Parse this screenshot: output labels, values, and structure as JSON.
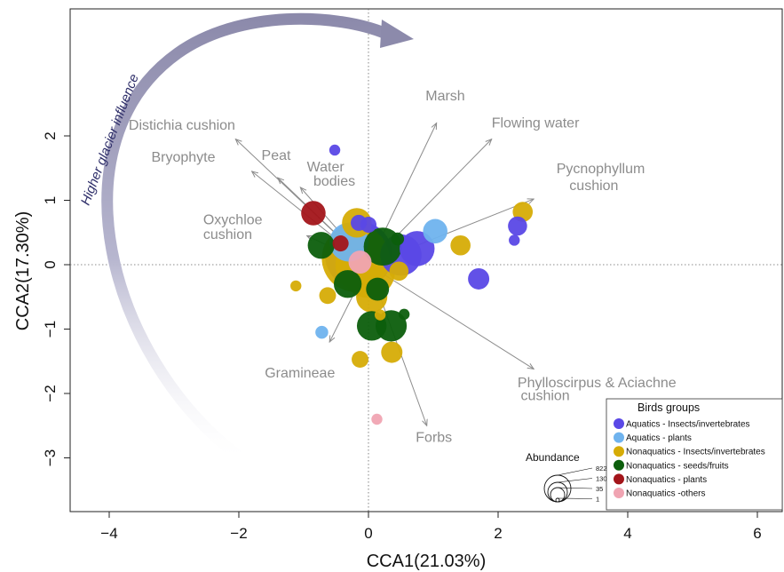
{
  "chart_data": {
    "type": "scatter",
    "xlabel": "CCA1(21.03%)",
    "ylabel": "CCA2(17.30%)",
    "xlim": [
      -4.6,
      6.5
    ],
    "ylim": [
      -3.8,
      4.0
    ],
    "xticks": [
      "−4",
      "−2",
      "0",
      "2",
      "4",
      "6"
    ],
    "yticks": [
      "−3",
      "−2",
      "−1",
      "0",
      "1",
      "2"
    ],
    "reference_lines": [
      "x=0 dotted",
      "y=0 dotted"
    ],
    "arrow_annotation": "Higher glacier influence",
    "env_vectors": [
      {
        "name": "Distichia cushion",
        "x": -2.05,
        "y": 1.95,
        "lx": -3.7,
        "ly": 2.1,
        "anchor": "start"
      },
      {
        "name": "Bryophyte",
        "x": -1.8,
        "y": 1.45,
        "lx": -3.35,
        "ly": 1.6,
        "anchor": "start"
      },
      {
        "name": "Peat",
        "x": -1.4,
        "y": 1.35,
        "lx": -1.65,
        "ly": 1.63,
        "anchor": "start"
      },
      {
        "name": "Water",
        "x": -1.05,
        "y": 1.2,
        "lx": -0.95,
        "ly": 1.45,
        "anchor": "start"
      },
      {
        "name": "bodies",
        "x": null,
        "y": null,
        "lx": -0.85,
        "ly": 1.23,
        "anchor": "start"
      },
      {
        "name": "Oxychloe",
        "x": -0.95,
        "y": 0.45,
        "lx": -2.55,
        "ly": 0.63,
        "anchor": "start"
      },
      {
        "name": "cushion",
        "x": null,
        "y": null,
        "lx": -2.55,
        "ly": 0.4,
        "anchor": "start"
      },
      {
        "name": "Marsh",
        "x": 1.05,
        "y": 2.2,
        "lx": 0.88,
        "ly": 2.55,
        "anchor": "start"
      },
      {
        "name": "Flowing water",
        "x": 1.9,
        "y": 1.95,
        "lx": 1.9,
        "ly": 2.13,
        "anchor": "start"
      },
      {
        "name": "Pycnophyllum",
        "x": 2.55,
        "y": 1.02,
        "lx": 2.9,
        "ly": 1.42,
        "anchor": "start"
      },
      {
        "name": "cushion",
        "x": null,
        "y": null,
        "lx": 3.1,
        "ly": 1.16,
        "anchor": "start"
      },
      {
        "name": "Gramineae",
        "x": -0.6,
        "y": -1.2,
        "lx": -1.6,
        "ly": -1.75,
        "anchor": "start"
      },
      {
        "name": "Phylloscirpus & Aciachne",
        "x": 2.55,
        "y": -1.62,
        "lx": 2.3,
        "ly": -1.9,
        "anchor": "start"
      },
      {
        "name": "cushion",
        "x": null,
        "y": null,
        "lx": 2.35,
        "ly": -2.1,
        "anchor": "start"
      },
      {
        "name": "Forbs",
        "x": 0.9,
        "y": -2.5,
        "lx": 0.73,
        "ly": -2.75,
        "anchor": "start"
      }
    ],
    "series": [
      {
        "name": "Aquatics - Insects/invertebrates",
        "color": "#5a48e6",
        "points": [
          {
            "x": -0.52,
            "y": 1.78,
            "s": 1
          },
          {
            "x": -0.15,
            "y": 0.65,
            "s": 5
          },
          {
            "x": 0.0,
            "y": 0.62,
            "s": 5
          },
          {
            "x": -0.15,
            "y": 0.15,
            "s": 822
          },
          {
            "x": 0.5,
            "y": 0.15,
            "s": 160
          },
          {
            "x": 0.75,
            "y": 0.25,
            "s": 90
          },
          {
            "x": 1.7,
            "y": -0.22,
            "s": 15
          },
          {
            "x": 2.3,
            "y": 0.6,
            "s": 10
          },
          {
            "x": 2.25,
            "y": 0.38,
            "s": 1
          }
        ]
      },
      {
        "name": "Aquatics - plants",
        "color": "#6fb3ee",
        "points": [
          {
            "x": -0.3,
            "y": 0.35,
            "s": 130
          },
          {
            "x": 1.03,
            "y": 0.52,
            "s": 25
          },
          {
            "x": -0.72,
            "y": -1.05,
            "s": 2
          }
        ]
      },
      {
        "name": "Nonaquatics - Insects/invertebrates",
        "color": "#d6ac06",
        "points": [
          {
            "x": -0.18,
            "y": 0.65,
            "s": 50
          },
          {
            "x": -0.2,
            "y": 0.1,
            "s": 822
          },
          {
            "x": 0.0,
            "y": -0.1,
            "s": 380
          },
          {
            "x": -0.15,
            "y": 0.0,
            "s": 240
          },
          {
            "x": 0.05,
            "y": -0.5,
            "s": 60
          },
          {
            "x": 0.47,
            "y": -0.1,
            "s": 10
          },
          {
            "x": 1.42,
            "y": 0.3,
            "s": 12
          },
          {
            "x": 2.38,
            "y": 0.82,
            "s": 12
          },
          {
            "x": -0.63,
            "y": -0.48,
            "s": 6
          },
          {
            "x": -1.12,
            "y": -0.33,
            "s": 1
          },
          {
            "x": -0.13,
            "y": -1.47,
            "s": 6
          },
          {
            "x": 0.36,
            "y": -1.36,
            "s": 15
          },
          {
            "x": 0.18,
            "y": -0.78,
            "s": 1
          }
        ]
      },
      {
        "name": "Nonaquatics - seeds/fruits",
        "color": "#0c5e0c",
        "points": [
          {
            "x": -0.73,
            "y": 0.3,
            "s": 35
          },
          {
            "x": 0.22,
            "y": 0.28,
            "s": 120
          },
          {
            "x": -0.32,
            "y": -0.3,
            "s": 40
          },
          {
            "x": 0.14,
            "y": -0.38,
            "s": 20
          },
          {
            "x": 0.05,
            "y": -0.95,
            "s": 50
          },
          {
            "x": 0.35,
            "y": -0.95,
            "s": 60
          },
          {
            "x": 0.55,
            "y": -0.77,
            "s": 1
          },
          {
            "x": 0.45,
            "y": 0.4,
            "s": 2
          }
        ]
      },
      {
        "name": "Nonaquatics - plants",
        "color": "#a3151a",
        "points": [
          {
            "x": -0.85,
            "y": 0.8,
            "s": 25
          },
          {
            "x": -0.43,
            "y": 0.33,
            "s": 5
          }
        ]
      },
      {
        "name": "Nonaquatics -others",
        "color": "#f0a4b2",
        "points": [
          {
            "x": -0.13,
            "y": 0.04,
            "s": 20
          },
          {
            "x": 0.13,
            "y": -2.4,
            "s": 1
          }
        ]
      }
    ],
    "legend": {
      "title": "Birds groups",
      "position": "bottom-right",
      "entries": [
        {
          "label": "Aquatics - Insects/invertebrates",
          "color": "#5a48e6"
        },
        {
          "label": "Aquatics - plants",
          "color": "#6fb3ee"
        },
        {
          "label": "Nonaquatics - Insects/invertebrates",
          "color": "#d6ac06"
        },
        {
          "label": "Nonaquatics - seeds/fruits",
          "color": "#0c5e0c"
        },
        {
          "label": "Nonaquatics - plants",
          "color": "#a3151a"
        },
        {
          "label": "Nonaquatics -others",
          "color": "#f0a4b2"
        }
      ]
    },
    "size_legend": {
      "title": "Abundance",
      "values": [
        "822",
        "130",
        "35",
        "1"
      ]
    }
  }
}
